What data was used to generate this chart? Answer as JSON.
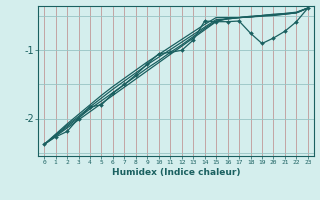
{
  "xlabel": "Humidex (Indice chaleur)",
  "bg_color": "#d4eeed",
  "grid_color_v": "#c09898",
  "grid_color_h": "#98c4c4",
  "line_color": "#1a6060",
  "xlim": [
    -0.5,
    23.5
  ],
  "ylim": [
    -2.55,
    -0.35
  ],
  "yticks": [
    -2,
    -1
  ],
  "xticks": [
    0,
    1,
    2,
    3,
    4,
    5,
    6,
    7,
    8,
    9,
    10,
    11,
    12,
    13,
    14,
    15,
    16,
    17,
    18,
    19,
    20,
    21,
    22,
    23
  ],
  "x_data": [
    0,
    1,
    2,
    3,
    4,
    5,
    6,
    7,
    8,
    9,
    10,
    11,
    12,
    13,
    14,
    15,
    16,
    17,
    18,
    19,
    20,
    21,
    22,
    23
  ],
  "y_main": [
    -2.38,
    -2.27,
    -2.19,
    -2.0,
    -1.83,
    -1.8,
    -1.63,
    -1.5,
    -1.36,
    -1.2,
    -1.05,
    -1.03,
    -1.0,
    -0.85,
    -0.57,
    -0.58,
    -0.58,
    -0.57,
    -0.75,
    -0.9,
    -0.82,
    -0.72,
    -0.58,
    -0.38
  ],
  "y_line1": [
    -2.38,
    -2.26,
    -2.14,
    -2.02,
    -1.9,
    -1.78,
    -1.66,
    -1.54,
    -1.42,
    -1.3,
    -1.18,
    -1.06,
    -0.94,
    -0.82,
    -0.7,
    -0.58,
    -0.53,
    -0.52,
    -0.51,
    -0.5,
    -0.49,
    -0.47,
    -0.45,
    -0.38
  ],
  "y_line2": [
    -2.38,
    -2.25,
    -2.12,
    -1.99,
    -1.86,
    -1.74,
    -1.62,
    -1.5,
    -1.38,
    -1.26,
    -1.15,
    -1.03,
    -0.92,
    -0.8,
    -0.68,
    -0.57,
    -0.54,
    -0.52,
    -0.51,
    -0.49,
    -0.48,
    -0.47,
    -0.45,
    -0.38
  ],
  "y_line3": [
    -2.38,
    -2.24,
    -2.1,
    -1.97,
    -1.83,
    -1.7,
    -1.57,
    -1.45,
    -1.33,
    -1.21,
    -1.1,
    -0.99,
    -0.88,
    -0.77,
    -0.66,
    -0.55,
    -0.54,
    -0.52,
    -0.51,
    -0.49,
    -0.48,
    -0.46,
    -0.45,
    -0.38
  ],
  "y_line4": [
    -2.38,
    -2.23,
    -2.08,
    -1.94,
    -1.8,
    -1.66,
    -1.53,
    -1.41,
    -1.29,
    -1.17,
    -1.06,
    -0.95,
    -0.84,
    -0.73,
    -0.62,
    -0.52,
    -0.52,
    -0.52,
    -0.5,
    -0.49,
    -0.47,
    -0.46,
    -0.44,
    -0.38
  ]
}
